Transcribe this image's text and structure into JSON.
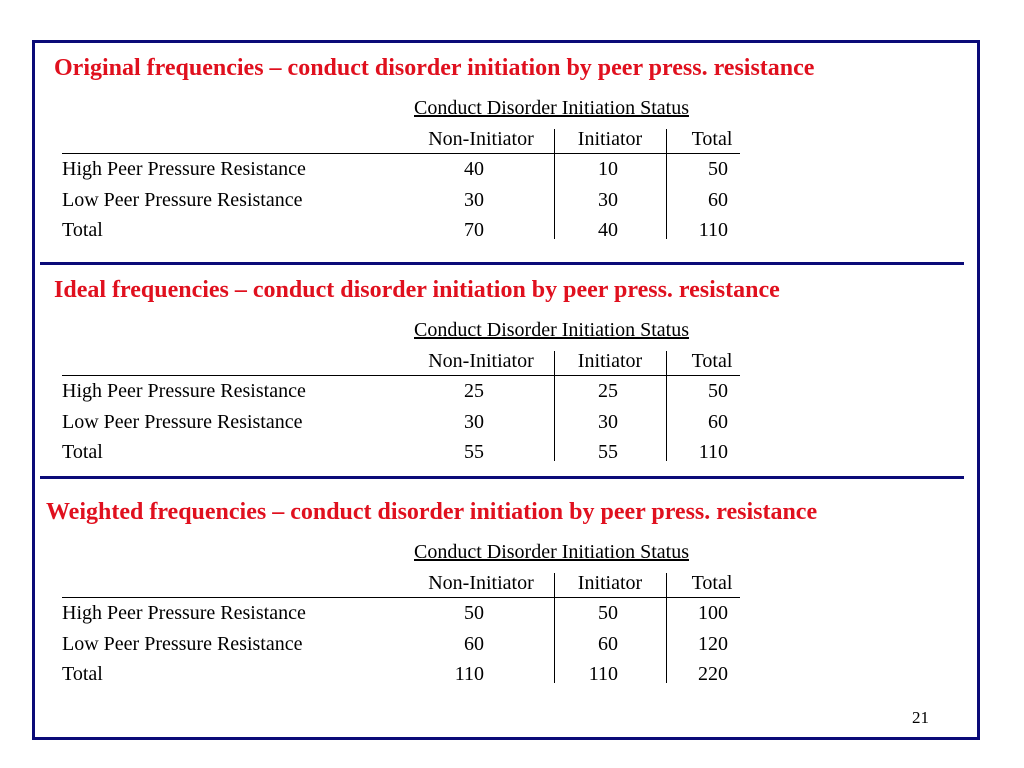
{
  "colors": {
    "frame": "#0a0a78",
    "title": "#e0101e"
  },
  "sections": [
    {
      "title": "Original frequencies – conduct disorder initiation by peer press. resistance",
      "status_header": "Conduct Disorder Initiation Status",
      "columns": [
        "Non-Initiator",
        "Initiator",
        "Total"
      ],
      "rows": [
        {
          "label": "High Peer Pressure Resistance",
          "values": [
            "40",
            "10",
            "50"
          ]
        },
        {
          "label": "Low Peer Pressure Resistance",
          "values": [
            "30",
            "30",
            "60"
          ]
        },
        {
          "label": "Total",
          "values": [
            "70",
            "40",
            "110"
          ]
        }
      ]
    },
    {
      "title": "Ideal frequencies – conduct disorder initiation by peer press. resistance",
      "status_header": "Conduct Disorder Initiation Status",
      "columns": [
        "Non-Initiator",
        "Initiator",
        "Total"
      ],
      "rows": [
        {
          "label": "High Peer Pressure Resistance",
          "values": [
            "25",
            "25",
            "50"
          ]
        },
        {
          "label": "Low Peer Pressure Resistance",
          "values": [
            "30",
            "30",
            "60"
          ]
        },
        {
          "label": "Total",
          "values": [
            "55",
            "55",
            "110"
          ]
        }
      ]
    },
    {
      "title": "Weighted frequencies – conduct disorder initiation by peer press. resistance",
      "status_header": "Conduct Disorder Initiation Status",
      "columns": [
        "Non-Initiator",
        "Initiator",
        "Total"
      ],
      "rows": [
        {
          "label": "High Peer Pressure Resistance",
          "values": [
            "50",
            "50",
            "100"
          ]
        },
        {
          "label": "Low Peer Pressure Resistance",
          "values": [
            "60",
            "60",
            "120"
          ]
        },
        {
          "label": "Total",
          "values": [
            "110",
            "110",
            "220"
          ]
        }
      ]
    }
  ],
  "page_number": "21"
}
